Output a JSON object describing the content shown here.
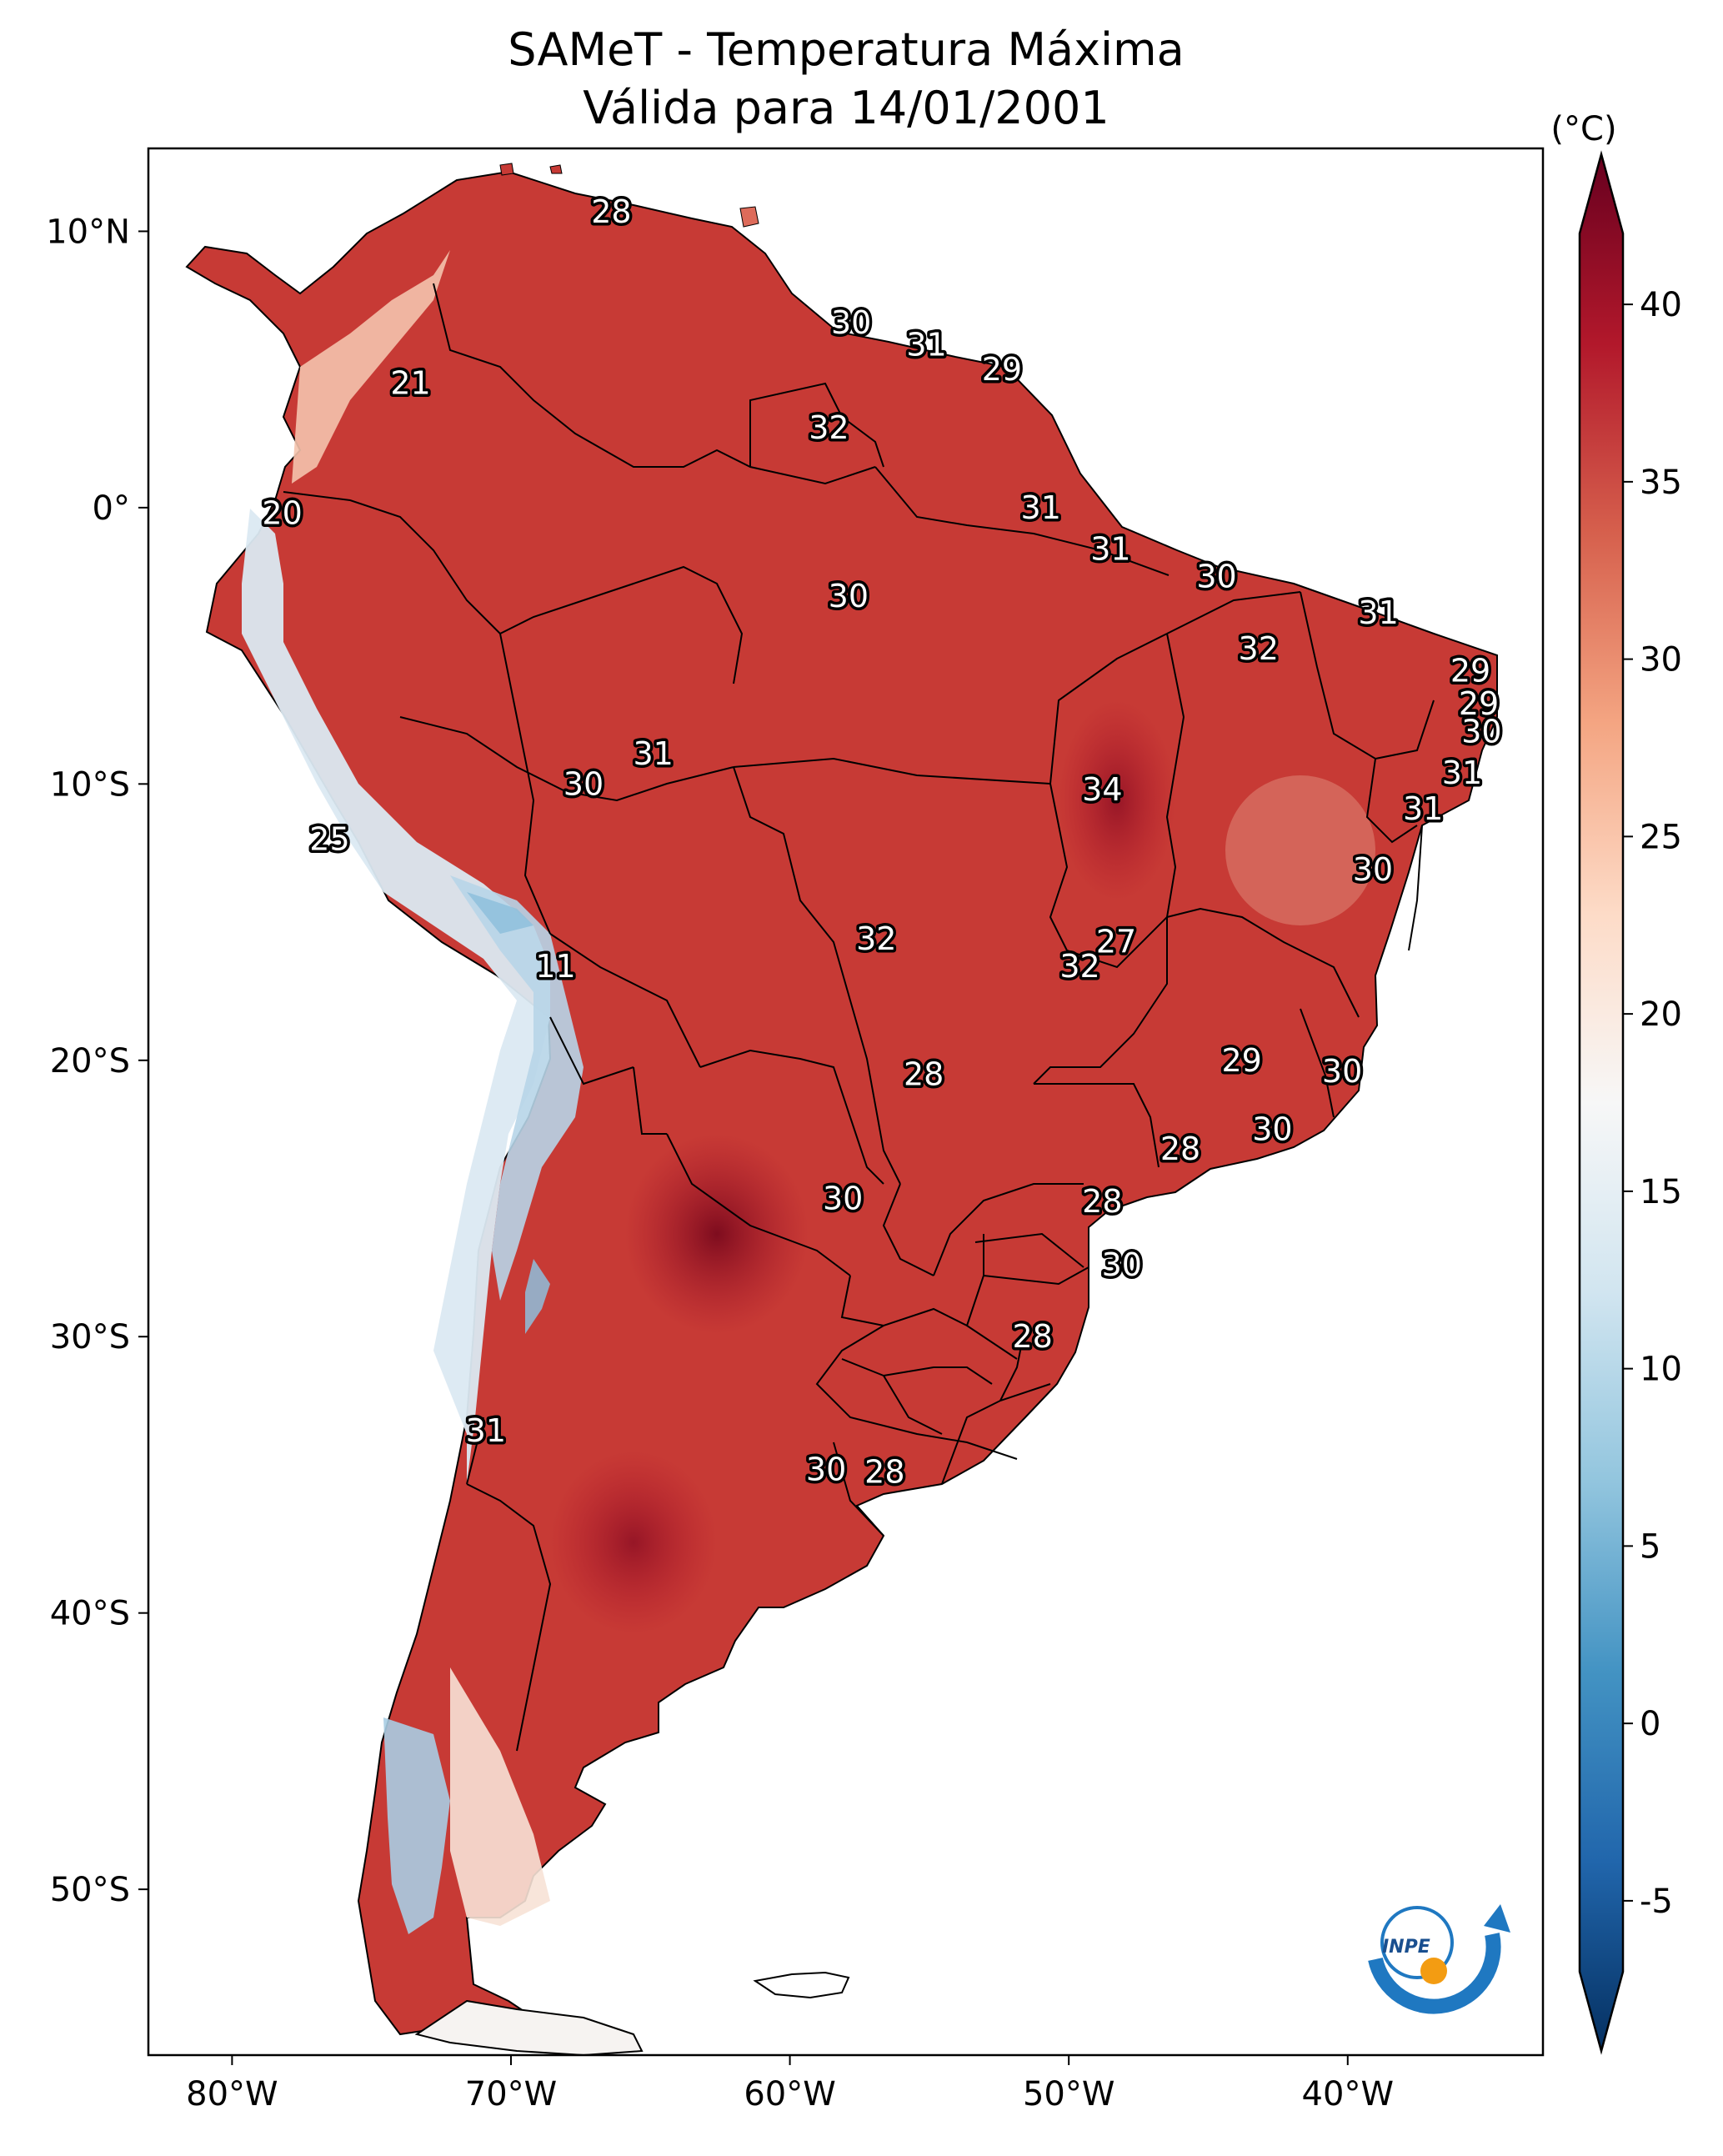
{
  "title_line1": "SAMeT - Temperatura Máxima",
  "title_line2": "Válida para 14/01/2001",
  "colorbar": {
    "unit_label": "(°C)",
    "min": -7,
    "max": 42,
    "ticks": [
      "40",
      "35",
      "30",
      "25",
      "20",
      "15",
      "10",
      "5",
      "0",
      "-5"
    ],
    "tick_values": [
      40,
      35,
      30,
      25,
      20,
      15,
      10,
      5,
      0,
      -5
    ],
    "colors": [
      "#053061",
      "#2166ac",
      "#4393c3",
      "#92c5de",
      "#d1e5f0",
      "#f7f7f7",
      "#fddbc7",
      "#f4a582",
      "#d6604d",
      "#b2182b",
      "#67001f"
    ]
  },
  "map": {
    "lon_range": [
      -83,
      -33
    ],
    "lat_range": [
      -56,
      13
    ],
    "lon_ticks": [
      "80°W",
      "70°W",
      "60°W",
      "50°W",
      "40°W"
    ],
    "lon_tick_values": [
      -80,
      -70,
      -60,
      -50,
      -40
    ],
    "lat_ticks": [
      "10°N",
      "0°",
      "10°S",
      "20°S",
      "30°S",
      "40°S",
      "50°S"
    ],
    "lat_tick_values": [
      10,
      0,
      -10,
      -20,
      -30,
      -40,
      -50
    ]
  },
  "contour_labels": [
    {
      "text": "28",
      "lon": -66.4,
      "lat": 10.7
    },
    {
      "text": "30",
      "lon": -57.8,
      "lat": 6.7
    },
    {
      "text": "31",
      "lon": -55.1,
      "lat": 5.9
    },
    {
      "text": "29",
      "lon": -52.4,
      "lat": 5.0
    },
    {
      "text": "21",
      "lon": -73.6,
      "lat": 4.5
    },
    {
      "text": "32",
      "lon": -58.6,
      "lat": 2.9
    },
    {
      "text": "20",
      "lon": -78.2,
      "lat": -0.2
    },
    {
      "text": "31",
      "lon": -51.0,
      "lat": 0.0
    },
    {
      "text": "31",
      "lon": -48.5,
      "lat": -1.5
    },
    {
      "text": "30",
      "lon": -44.7,
      "lat": -2.5
    },
    {
      "text": "30",
      "lon": -57.9,
      "lat": -3.2
    },
    {
      "text": "31",
      "lon": -38.9,
      "lat": -3.8
    },
    {
      "text": "32",
      "lon": -43.2,
      "lat": -5.1
    },
    {
      "text": "29",
      "lon": -35.6,
      "lat": -5.9
    },
    {
      "text": "29",
      "lon": -35.3,
      "lat": -7.1
    },
    {
      "text": "30",
      "lon": -35.2,
      "lat": -8.1
    },
    {
      "text": "31",
      "lon": -64.9,
      "lat": -8.9
    },
    {
      "text": "31",
      "lon": -35.9,
      "lat": -9.6
    },
    {
      "text": "30",
      "lon": -67.4,
      "lat": -10.0
    },
    {
      "text": "34",
      "lon": -48.8,
      "lat": -10.2
    },
    {
      "text": "31",
      "lon": -37.3,
      "lat": -10.9
    },
    {
      "text": "25",
      "lon": -76.5,
      "lat": -12.0
    },
    {
      "text": "30",
      "lon": -39.1,
      "lat": -13.1
    },
    {
      "text": "32",
      "lon": -56.9,
      "lat": -15.6
    },
    {
      "text": "27",
      "lon": -48.3,
      "lat": -15.7
    },
    {
      "text": "32",
      "lon": -49.6,
      "lat": -16.6
    },
    {
      "text": "11",
      "lon": -68.4,
      "lat": -16.6
    },
    {
      "text": "29",
      "lon": -43.8,
      "lat": -20.0
    },
    {
      "text": "30",
      "lon": -40.2,
      "lat": -20.4
    },
    {
      "text": "28",
      "lon": -55.2,
      "lat": -20.5
    },
    {
      "text": "30",
      "lon": -42.7,
      "lat": -22.5
    },
    {
      "text": "28",
      "lon": -46.0,
      "lat": -23.2
    },
    {
      "text": "30",
      "lon": -58.1,
      "lat": -25.0
    },
    {
      "text": "28",
      "lon": -48.8,
      "lat": -25.1
    },
    {
      "text": "30",
      "lon": -48.1,
      "lat": -27.4
    },
    {
      "text": "28",
      "lon": -51.3,
      "lat": -30.0
    },
    {
      "text": "31",
      "lon": -70.9,
      "lat": -33.4
    },
    {
      "text": "30",
      "lon": -58.7,
      "lat": -34.8
    },
    {
      "text": "28",
      "lon": -56.6,
      "lat": -34.9
    }
  ]
}
